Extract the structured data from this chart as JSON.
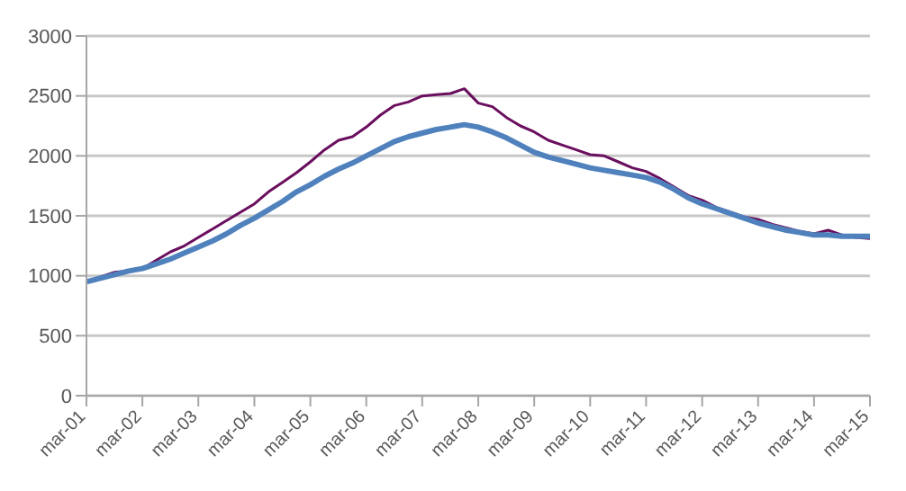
{
  "chart_data": {
    "type": "line",
    "x": [
      "2001-03",
      "2001-06",
      "2001-09",
      "2001-12",
      "2002-03",
      "2002-06",
      "2002-09",
      "2002-12",
      "2003-03",
      "2003-06",
      "2003-09",
      "2003-12",
      "2004-03",
      "2004-06",
      "2004-09",
      "2004-12",
      "2005-03",
      "2005-06",
      "2005-09",
      "2005-12",
      "2006-03",
      "2006-06",
      "2006-09",
      "2006-12",
      "2007-03",
      "2007-06",
      "2007-09",
      "2007-12",
      "2008-03",
      "2008-06",
      "2008-09",
      "2008-12",
      "2009-03",
      "2009-06",
      "2009-09",
      "2009-12",
      "2010-03",
      "2010-06",
      "2010-09",
      "2010-12",
      "2011-03",
      "2011-06",
      "2011-09",
      "2011-12",
      "2012-03",
      "2012-06",
      "2012-09",
      "2012-12",
      "2013-03",
      "2013-06",
      "2013-09",
      "2013-12",
      "2014-03",
      "2014-06",
      "2014-09",
      "2014-12",
      "2015-03"
    ],
    "series": [
      {
        "color": "#6a0e5e",
        "values": [
          950,
          990,
          1030,
          1040,
          1060,
          1130,
          1200,
          1250,
          1320,
          1390,
          1460,
          1530,
          1600,
          1700,
          1780,
          1860,
          1950,
          2050,
          2130,
          2160,
          2240,
          2340,
          2420,
          2450,
          2500,
          2510,
          2520,
          2560,
          2440,
          2410,
          2320,
          2250,
          2200,
          2130,
          2090,
          2050,
          2010,
          2000,
          1950,
          1900,
          1870,
          1810,
          1740,
          1670,
          1630,
          1570,
          1530,
          1490,
          1470,
          1430,
          1400,
          1370,
          1350,
          1380,
          1340,
          1320,
          1310
        ]
      },
      {
        "color": "#4f81bd",
        "values": [
          950,
          980,
          1010,
          1040,
          1060,
          1100,
          1140,
          1190,
          1240,
          1290,
          1350,
          1420,
          1480,
          1550,
          1620,
          1700,
          1760,
          1830,
          1890,
          1940,
          2000,
          2060,
          2120,
          2160,
          2190,
          2220,
          2240,
          2260,
          2240,
          2200,
          2150,
          2090,
          2030,
          1990,
          1960,
          1930,
          1900,
          1880,
          1860,
          1840,
          1820,
          1780,
          1720,
          1650,
          1600,
          1560,
          1520,
          1480,
          1440,
          1410,
          1380,
          1360,
          1340,
          1340,
          1330,
          1330,
          1330
        ]
      }
    ],
    "xlim": [
      "2001-03",
      "2015-03"
    ],
    "xticks": [
      {
        "value": "2001-03",
        "label": "mar-01"
      },
      {
        "value": "2002-03",
        "label": "mar-02"
      },
      {
        "value": "2003-03",
        "label": "mar-03"
      },
      {
        "value": "2004-03",
        "label": "mar-04"
      },
      {
        "value": "2005-03",
        "label": "mar-05"
      },
      {
        "value": "2006-03",
        "label": "mar-06"
      },
      {
        "value": "2007-03",
        "label": "mar-07"
      },
      {
        "value": "2008-03",
        "label": "mar-08"
      },
      {
        "value": "2009-03",
        "label": "mar-09"
      },
      {
        "value": "2010-03",
        "label": "mar-10"
      },
      {
        "value": "2011-03",
        "label": "mar-11"
      },
      {
        "value": "2012-03",
        "label": "mar-12"
      },
      {
        "value": "2013-03",
        "label": "mar-13"
      },
      {
        "value": "2014-03",
        "label": "mar-14"
      },
      {
        "value": "2015-03",
        "label": "mar-15"
      }
    ],
    "ylim": [
      0,
      3000
    ],
    "yticks": [
      0,
      500,
      1000,
      1500,
      2000,
      2500,
      3000
    ],
    "grid": "y",
    "marker": "none",
    "line_style": "solid"
  }
}
